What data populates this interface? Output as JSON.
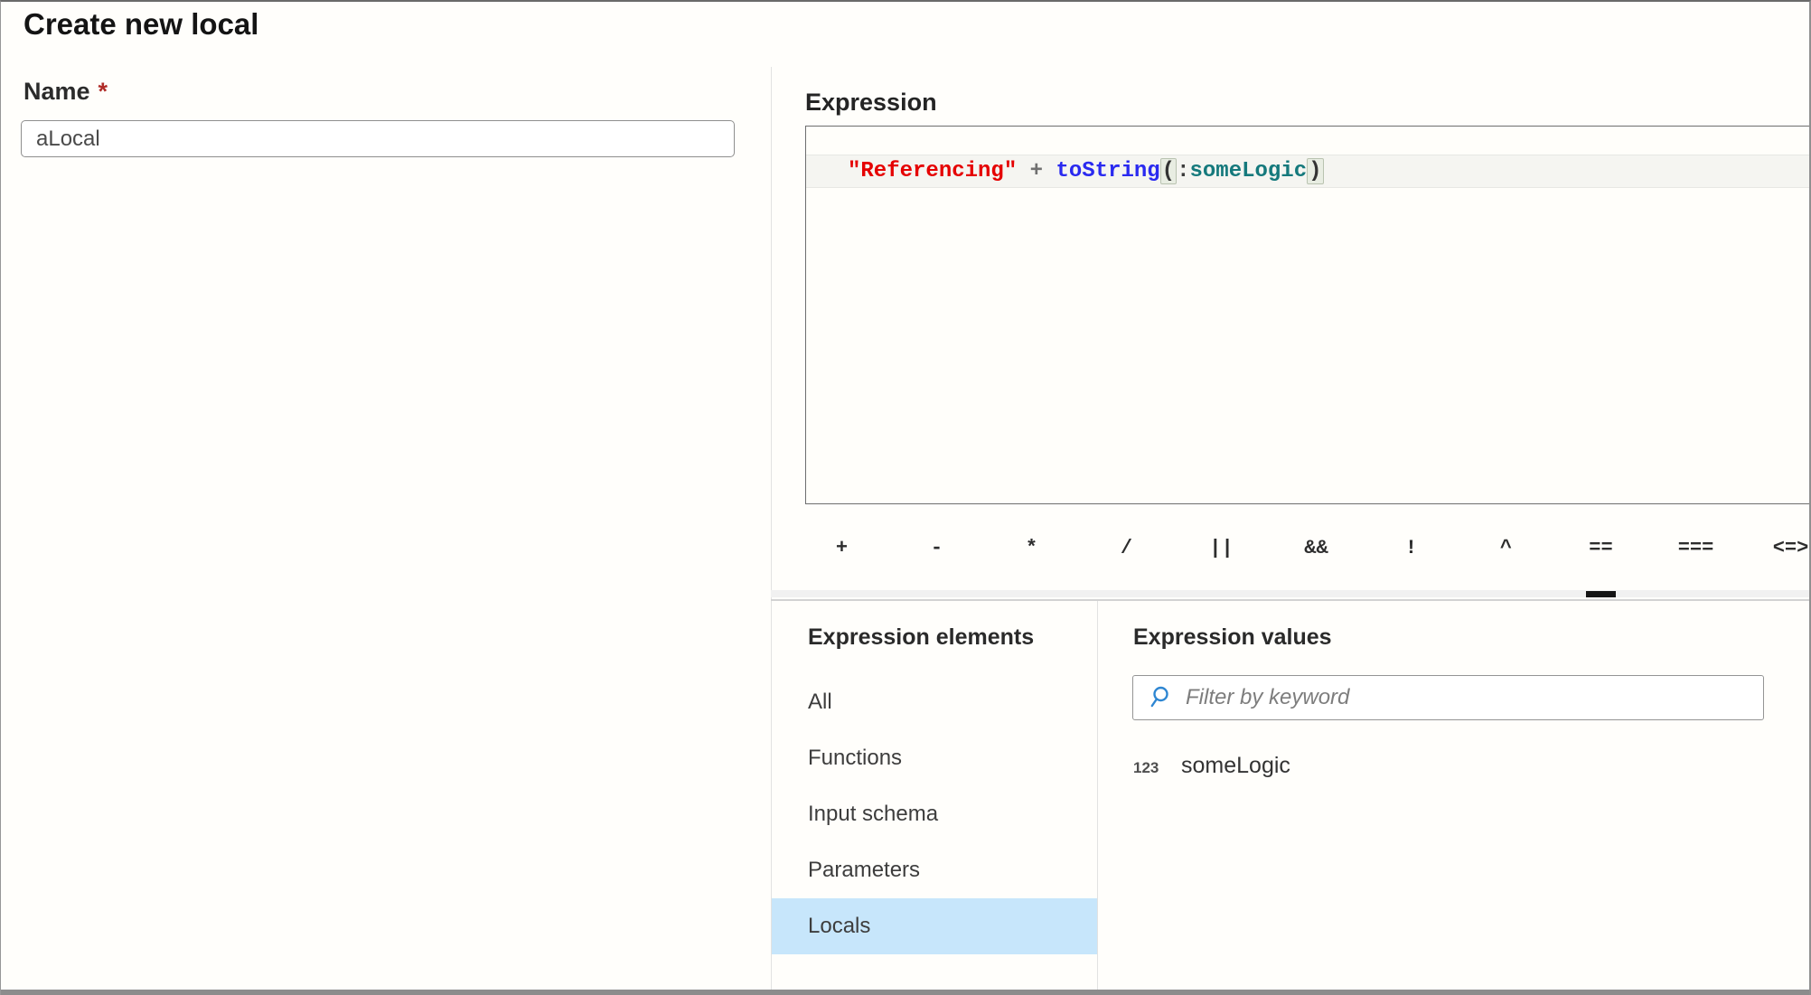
{
  "title": "Create new local",
  "form": {
    "name_label": "Name",
    "required_mark": "*",
    "name_value": "aLocal"
  },
  "expression": {
    "label": "Expression",
    "code_tokens": [
      {
        "type": "string",
        "text": "\"Referencing\""
      },
      {
        "type": "op",
        "text": " + "
      },
      {
        "type": "function",
        "text": "toString"
      },
      {
        "type": "bracket",
        "text": "("
      },
      {
        "type": "plain",
        "text": ":"
      },
      {
        "type": "local",
        "text": "someLogic"
      },
      {
        "type": "bracket",
        "text": ")"
      }
    ],
    "operators": [
      {
        "symbol": "+",
        "name": "plus"
      },
      {
        "symbol": "-",
        "name": "minus"
      },
      {
        "symbol": "*",
        "name": "multiply"
      },
      {
        "symbol": "/",
        "name": "divide"
      },
      {
        "symbol": "||",
        "name": "or"
      },
      {
        "symbol": "&&",
        "name": "and"
      },
      {
        "symbol": "!",
        "name": "not"
      },
      {
        "symbol": "^",
        "name": "xor"
      },
      {
        "symbol": "==",
        "name": "equals"
      },
      {
        "symbol": "===",
        "name": "strict-equals"
      },
      {
        "symbol": "<=>",
        "name": "compare"
      }
    ],
    "selected_operator": "=="
  },
  "elements_panel": {
    "title": "Expression elements",
    "items": [
      {
        "label": "All",
        "selected": false
      },
      {
        "label": "Functions",
        "selected": false
      },
      {
        "label": "Input schema",
        "selected": false
      },
      {
        "label": "Parameters",
        "selected": false
      },
      {
        "label": "Locals",
        "selected": true
      }
    ]
  },
  "values_panel": {
    "title": "Expression values",
    "filter_placeholder": "Filter by keyword",
    "items": [
      {
        "type_icon": "123",
        "type": "integer",
        "label": "someLogic"
      }
    ]
  },
  "colors": {
    "selected_item_bg": "#c7e6fb",
    "string_token": "#e50000",
    "function_token": "#2a2af0",
    "local_token": "#15797c",
    "bracket_highlight_bg": "#e8ede2",
    "required_mark": "#b02b27",
    "search_icon": "#2e86d2",
    "selected_operator_indicator": "#151515"
  }
}
